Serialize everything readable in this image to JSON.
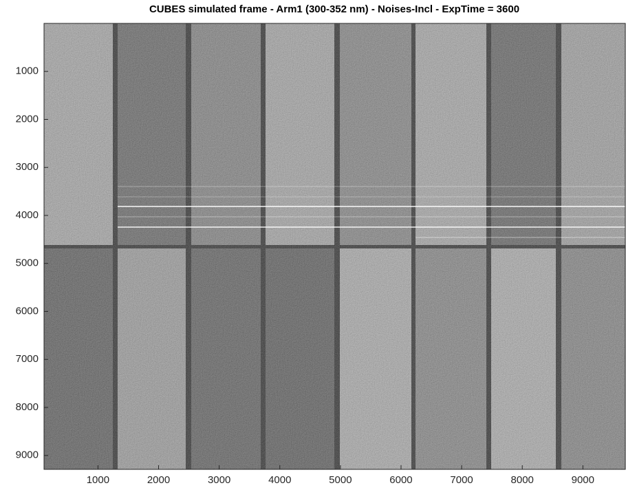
{
  "chart_data": {
    "type": "image",
    "title": "CUBES simulated frame - Arm1 (300-352 nm) - Noises-Incl - ExpTime = 3600",
    "xlim": [
      110,
      9700
    ],
    "ylim": [
      0,
      9290
    ],
    "xticks": [
      1000,
      2000,
      3000,
      4000,
      5000,
      6000,
      7000,
      8000,
      9000
    ],
    "yticks": [
      1000,
      2000,
      3000,
      4000,
      5000,
      6000,
      7000,
      8000,
      9000
    ],
    "colormap": "gray"
  }
}
